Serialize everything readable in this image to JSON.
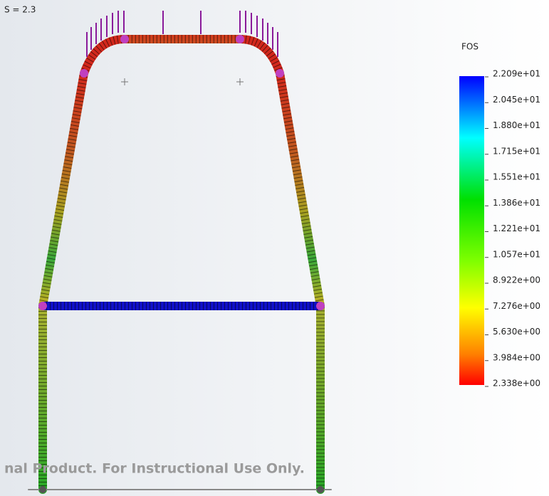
{
  "header_text": "S = 2.3",
  "legend": {
    "title": "FOS",
    "labels": [
      "2.209e+01",
      "2.045e+01",
      "1.880e+01",
      "1.715e+01",
      "1.551e+01",
      "1.386e+01",
      "1.221e+01",
      "1.057e+01",
      "8.922e+00",
      "7.276e+00",
      "5.630e+00",
      "3.984e+00",
      "2.338e+00"
    ]
  },
  "watermark": "nal Product. For Instructional Use Only."
}
